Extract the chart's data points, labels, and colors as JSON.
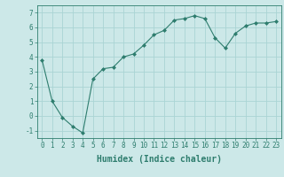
{
  "x": [
    0,
    1,
    2,
    3,
    4,
    5,
    6,
    7,
    8,
    9,
    10,
    11,
    12,
    13,
    14,
    15,
    16,
    17,
    18,
    19,
    20,
    21,
    22,
    23
  ],
  "y": [
    3.8,
    1.0,
    -0.1,
    -0.7,
    -1.15,
    2.5,
    3.2,
    3.3,
    4.0,
    4.2,
    4.8,
    5.5,
    5.8,
    6.5,
    6.6,
    6.8,
    6.6,
    5.3,
    4.6,
    5.6,
    6.1,
    6.3,
    6.3,
    6.4
  ],
  "xlabel": "Humidex (Indice chaleur)",
  "ylim": [
    -1.5,
    7.5
  ],
  "xlim": [
    -0.5,
    23.5
  ],
  "yticks": [
    -1,
    0,
    1,
    2,
    3,
    4,
    5,
    6,
    7
  ],
  "xticks": [
    0,
    1,
    2,
    3,
    4,
    5,
    6,
    7,
    8,
    9,
    10,
    11,
    12,
    13,
    14,
    15,
    16,
    17,
    18,
    19,
    20,
    21,
    22,
    23
  ],
  "line_color": "#2e7d6e",
  "marker": "D",
  "marker_size": 2.0,
  "bg_color": "#cce8e8",
  "grid_color": "#aad4d4",
  "xlabel_fontsize": 7,
  "tick_fontsize": 5.5,
  "linewidth": 0.8
}
